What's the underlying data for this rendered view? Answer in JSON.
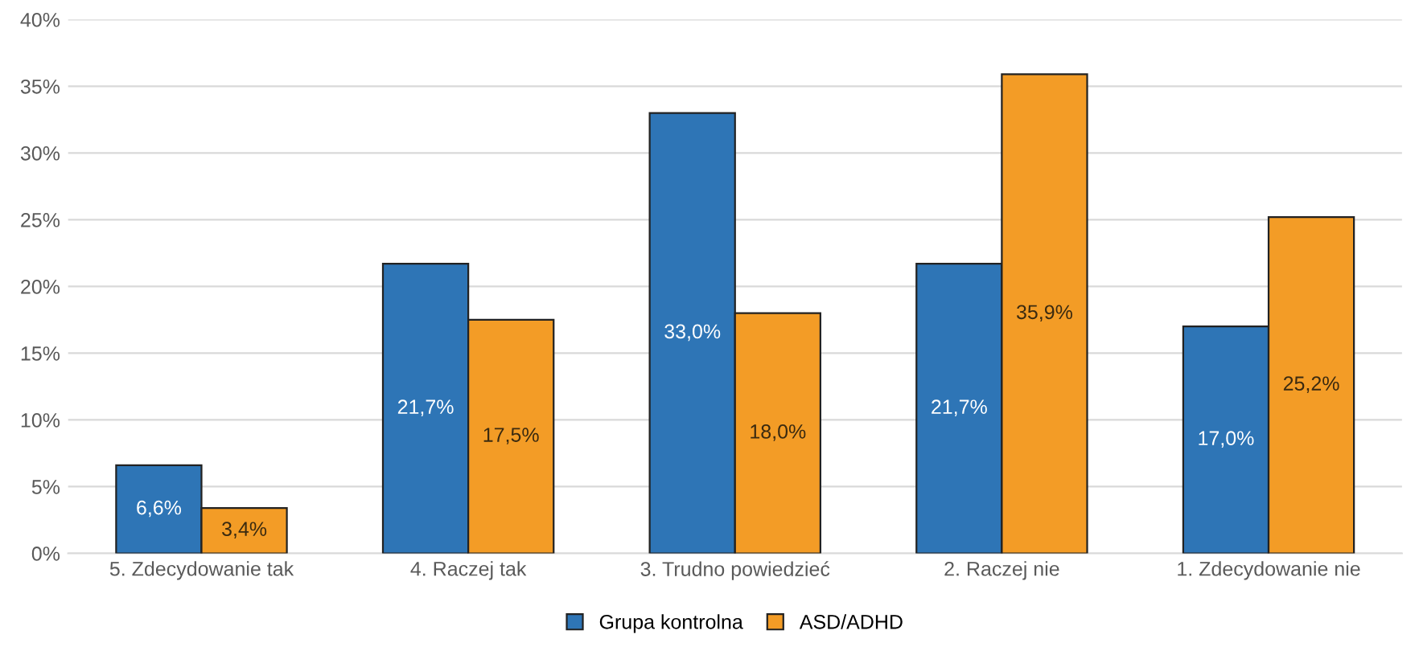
{
  "chart_data": {
    "type": "bar",
    "categories": [
      "5. Zdecydowanie tak",
      "4. Raczej tak",
      "3. Trudno powiedzieć",
      "2. Raczej nie",
      "1. Zdecydowanie nie"
    ],
    "series": [
      {
        "name": "Grupa kontrolna",
        "color": "#2e75b6",
        "values": [
          6.6,
          21.7,
          33.0,
          21.7,
          17.0
        ],
        "value_labels": [
          "6,6%",
          "21,7%",
          "33,0%",
          "21,7%",
          "17,0%"
        ]
      },
      {
        "name": "ASD/ADHD",
        "color": "#f39c26",
        "values": [
          3.4,
          17.5,
          18.0,
          35.9,
          25.2
        ],
        "value_labels": [
          "3,4%",
          "17,5%",
          "18,0%",
          "35,9%",
          "25,2%"
        ]
      }
    ],
    "ylim": [
      0,
      40
    ],
    "yticks": [
      {
        "value": 0,
        "label": "0%"
      },
      {
        "value": 5,
        "label": "5%"
      },
      {
        "value": 10,
        "label": "10%"
      },
      {
        "value": 15,
        "label": "15%"
      },
      {
        "value": 20,
        "label": "20%"
      },
      {
        "value": 25,
        "label": "25%"
      },
      {
        "value": 30,
        "label": "30%"
      },
      {
        "value": 35,
        "label": "35%"
      },
      {
        "value": 40,
        "label": "40%"
      }
    ],
    "grid": "y",
    "legend": "bottom"
  }
}
